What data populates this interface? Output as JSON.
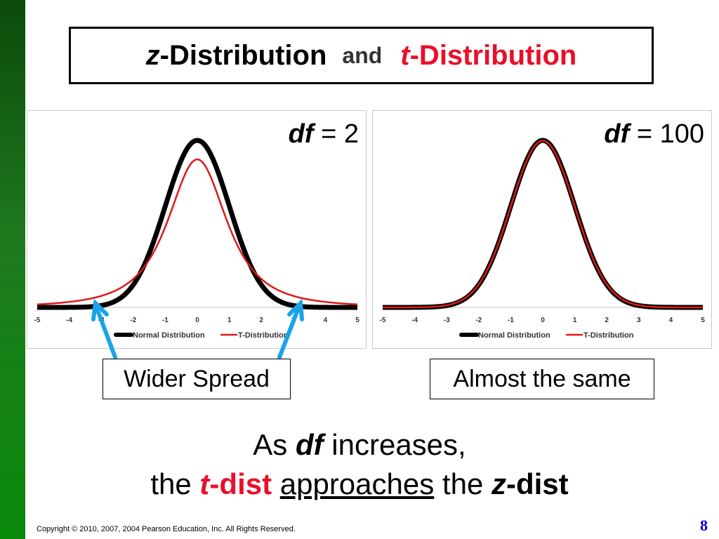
{
  "title": {
    "z_letter": "z",
    "z_rest": "-Distribution",
    "and": "and",
    "t_letter": "t",
    "t_rest": "-Distribution"
  },
  "chart_data": [
    {
      "type": "line",
      "df_var": "df",
      "df_rest": " = 2",
      "xlim": [
        -5,
        5
      ],
      "x_ticks": [
        "-5",
        "-4",
        "-3",
        "-2",
        "-1",
        "0",
        "1",
        "2",
        "3",
        "4",
        "5"
      ],
      "legend": "bottom",
      "grid": false,
      "series": [
        {
          "name": "Normal Distribution",
          "color": "#000000",
          "df": null
        },
        {
          "name": "T-Distribution",
          "color": "#e01818",
          "df": 2
        }
      ]
    },
    {
      "type": "line",
      "df_var": "df",
      "df_rest": " = 100",
      "xlim": [
        -5,
        5
      ],
      "x_ticks": [
        "-5",
        "-4",
        "-3",
        "-2",
        "-1",
        "0",
        "1",
        "2",
        "3",
        "4",
        "5"
      ],
      "legend": "bottom",
      "grid": false,
      "series": [
        {
          "name": "Normal Distribution",
          "color": "#000000",
          "df": null
        },
        {
          "name": "T-Distribution",
          "color": "#e01818",
          "df": 100
        }
      ]
    }
  ],
  "callouts": {
    "left": "Wider Spread",
    "right": "Almost the same"
  },
  "conclusion": {
    "as": "As ",
    "df": "df",
    "increases": " increases,",
    "the1": "the ",
    "t": "t",
    "dist1": "-dist",
    "approaches": "approaches",
    "the2": " the ",
    "z": "z",
    "dist2": "-dist"
  },
  "footer": {
    "copyright": "Copyright © 2010, 2007, 2004 Pearson Education, Inc. All Rights Reserved.",
    "page": "8"
  },
  "colors": {
    "red": "#e8102a",
    "arrow": "#1aa3e8",
    "page_number": "#0000cc"
  }
}
